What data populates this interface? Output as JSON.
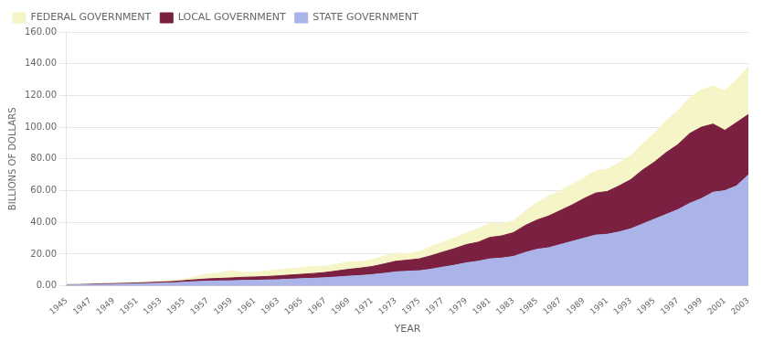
{
  "chart_data": {
    "type": "area",
    "stacked": true,
    "x": [
      1945,
      1946,
      1947,
      1948,
      1949,
      1950,
      1951,
      1952,
      1953,
      1954,
      1955,
      1956,
      1957,
      1958,
      1959,
      1960,
      1961,
      1962,
      1963,
      1964,
      1965,
      1966,
      1967,
      1968,
      1969,
      1970,
      1971,
      1972,
      1973,
      1974,
      1975,
      1976,
      1977,
      1978,
      1979,
      1980,
      1981,
      1982,
      1983,
      1984,
      1985,
      1986,
      1987,
      1988,
      1989,
      1990,
      1991,
      1992,
      1993,
      1994,
      1995,
      1996,
      1997,
      1998,
      1999,
      2000,
      2001,
      2002,
      2003
    ],
    "series": [
      {
        "name": "STATE GOVERNMENT",
        "color": "#aab4e8",
        "values": [
          0.5,
          0.6,
          0.7,
          0.9,
          1.0,
          1.1,
          1.3,
          1.5,
          1.7,
          1.9,
          2.3,
          2.7,
          3.0,
          3.1,
          3.2,
          3.4,
          3.5,
          3.7,
          3.9,
          4.2,
          4.5,
          4.8,
          5.1,
          5.6,
          6.1,
          6.5,
          7.1,
          7.9,
          8.8,
          9.2,
          9.5,
          10.5,
          11.8,
          13.0,
          14.5,
          15.5,
          17.0,
          17.5,
          18.5,
          21.0,
          23.0,
          24.0,
          26.0,
          28.0,
          30.0,
          32.0,
          32.5,
          34.0,
          36.0,
          39.0,
          42.0,
          45.0,
          48.0,
          52.0,
          55.0,
          59.0,
          60.0,
          63.0,
          70.0
        ]
      },
      {
        "name": "LOCAL GOVERNMENT",
        "color": "#7b2040",
        "values": [
          0.2,
          0.2,
          0.3,
          0.4,
          0.4,
          0.5,
          0.5,
          0.6,
          0.7,
          0.8,
          1.0,
          1.2,
          1.4,
          1.6,
          1.8,
          2.0,
          2.1,
          2.2,
          2.4,
          2.6,
          2.8,
          3.0,
          3.3,
          3.8,
          4.3,
          4.7,
          5.1,
          5.9,
          6.7,
          7.0,
          7.5,
          8.5,
          9.5,
          10.5,
          11.5,
          12.0,
          13.5,
          14.0,
          15.0,
          17.0,
          18.5,
          20.0,
          21.5,
          23.0,
          25.0,
          26.5,
          27.0,
          29.0,
          31.0,
          34.0,
          36.0,
          39.0,
          41.0,
          44.0,
          45.0,
          43.0,
          38.0,
          40.0,
          38.0
        ]
      },
      {
        "name": "FEDERAL GOVERNMENT",
        "color": "#f5f5c8",
        "values": [
          0.2,
          0.2,
          0.3,
          0.3,
          0.4,
          0.5,
          0.5,
          0.6,
          0.7,
          0.8,
          1.0,
          2.0,
          3.0,
          3.5,
          4.5,
          3.0,
          3.0,
          3.5,
          3.7,
          4.0,
          4.2,
          4.4,
          4.0,
          4.3,
          4.7,
          4.1,
          4.3,
          4.9,
          5.2,
          4.0,
          4.5,
          5.8,
          6.2,
          6.8,
          7.2,
          8.5,
          9.0,
          7.5,
          7.5,
          9.0,
          11.0,
          12.5,
          12.5,
          13.0,
          13.0,
          14.0,
          14.0,
          14.5,
          15.0,
          16.5,
          18.0,
          20.0,
          21.5,
          22.5,
          23.5,
          24.0,
          25.0,
          27.0,
          30.0
        ]
      }
    ],
    "xlabel": "YEAR",
    "ylabel": "BILLIONS OF DOLLARS",
    "xlim": [
      1945,
      2003
    ],
    "xticks": [
      1945,
      1947,
      1949,
      1951,
      1953,
      1955,
      1957,
      1959,
      1961,
      1963,
      1965,
      1967,
      1969,
      1971,
      1973,
      1975,
      1977,
      1979,
      1981,
      1983,
      1985,
      1987,
      1989,
      1991,
      1993,
      1995,
      1997,
      1999,
      2001,
      2003
    ],
    "ylim": [
      0,
      160
    ],
    "yticks": [
      {
        "value": 0,
        "label": "0.00"
      },
      {
        "value": 20,
        "label": "20.00"
      },
      {
        "value": 40,
        "label": "40.00"
      },
      {
        "value": 60,
        "label": "60.00"
      },
      {
        "value": 80,
        "label": "80.00"
      },
      {
        "value": 100,
        "label": "100.00"
      },
      {
        "value": 120,
        "label": "120.00"
      },
      {
        "value": 140,
        "label": "140.00"
      },
      {
        "value": 160,
        "label": "160.00"
      }
    ],
    "grid": "y",
    "legend": "upper left"
  }
}
